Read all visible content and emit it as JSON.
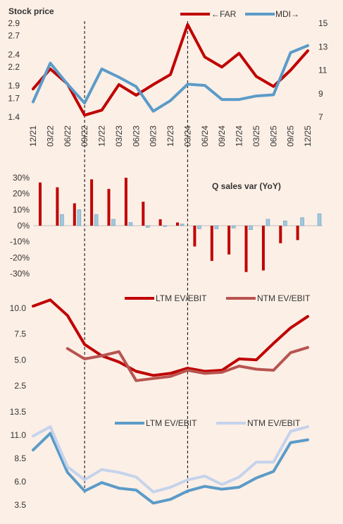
{
  "colors": {
    "background": "#fcefe6",
    "far_red": "#c00000",
    "mdi_blue": "#5b9bc8",
    "ntm_far": "#b85450",
    "ntm_mdi": "#c5d3ec"
  },
  "chart_data": [
    {
      "id": "stock",
      "type": "line",
      "title": "Stock price",
      "x_labels": [
        "12/21",
        "03/22",
        "06/22",
        "09/22",
        "12/22",
        "03/23",
        "06/23",
        "09/23",
        "12/23",
        "03/24",
        "06/24",
        "09/24",
        "12/24",
        "03/25",
        "06/25",
        "09/25",
        "12/25"
      ],
      "y_left": {
        "ylim": [
          1.4,
          2.9
        ],
        "ticks": [
          "1.4",
          "1.7",
          "1.9",
          "2.2",
          "2.4",
          "2.7",
          "2.9"
        ]
      },
      "y_right": {
        "ylim": [
          7,
          15
        ],
        "ticks": [
          "7",
          "9",
          "11",
          "13",
          "15"
        ]
      },
      "series": [
        {
          "name": "←FAR",
          "axis": "left",
          "color": "#c00000",
          "values": [
            1.85,
            2.17,
            1.93,
            1.43,
            1.51,
            1.92,
            1.75,
            1.92,
            2.08,
            2.88,
            2.36,
            2.2,
            2.42,
            2.05,
            1.89,
            2.15,
            2.46
          ]
        },
        {
          "name": "MDI→",
          "axis": "right",
          "color": "#5b9bc8",
          "values": [
            8.3,
            11.6,
            9.8,
            8.2,
            11.1,
            10.4,
            9.6,
            7.5,
            8.4,
            9.8,
            9.7,
            8.5,
            8.5,
            8.8,
            8.9,
            12.5,
            13.1
          ]
        }
      ],
      "vertical_markers_at": [
        "09/22",
        "03/24"
      ]
    },
    {
      "id": "sales",
      "type": "bar",
      "title": "Q sales var (YoY)",
      "ylim": [
        -30,
        30
      ],
      "ticks": [
        "30%",
        "20%",
        "10%",
        "0%",
        "-10%",
        "-20%",
        "-30%"
      ],
      "series": [
        {
          "name": "FAR",
          "color": "#c00000",
          "values": [
            27,
            24,
            14,
            29,
            23,
            30,
            15,
            4,
            2,
            -13,
            -22,
            -18,
            -29,
            -28,
            -11,
            -9,
            null
          ]
        },
        {
          "name": "MDI",
          "color": "#9fc8dd",
          "values": [
            null,
            7,
            10,
            7,
            4,
            2,
            -1,
            -0.5,
            1,
            -2,
            -2,
            -1.5,
            -2.5,
            4,
            3,
            5,
            7.5
          ]
        }
      ]
    },
    {
      "id": "ev_far",
      "type": "line",
      "ylim": [
        2.5,
        10.0
      ],
      "ticks": [
        "10.0",
        "7.5",
        "5.0",
        "2.5"
      ],
      "series": [
        {
          "name": "LTM EV/EBIT",
          "color": "#c00000",
          "values": [
            10.2,
            10.8,
            9.3,
            6.5,
            5.4,
            4.8,
            3.9,
            3.5,
            3.7,
            4.2,
            3.9,
            4.0,
            5.1,
            5.0,
            6.6,
            8.1,
            9.2
          ]
        },
        {
          "name": "NTM EV/EBIT",
          "color": "#b85450",
          "values": [
            null,
            null,
            6.1,
            5.1,
            5.4,
            5.8,
            3.0,
            3.2,
            3.4,
            4.0,
            3.7,
            3.8,
            4.4,
            4.1,
            4.0,
            5.7,
            6.2
          ]
        }
      ]
    },
    {
      "id": "ev_mdi",
      "type": "line",
      "ylim": [
        3.5,
        13.5
      ],
      "ticks": [
        "13.5",
        "11.0",
        "8.5",
        "6.0",
        "3.5"
      ],
      "series": [
        {
          "name": "LTM EV/EBIT",
          "color": "#5b9bc8",
          "values": [
            9.4,
            11.2,
            7.0,
            5.0,
            5.9,
            5.3,
            5.1,
            3.7,
            4.1,
            5.0,
            5.5,
            5.2,
            5.4,
            6.4,
            7.1,
            10.2,
            10.5
          ]
        },
        {
          "name": "NTM EV/EBIT",
          "color": "#c5d3ec",
          "values": [
            10.9,
            11.9,
            7.6,
            6.2,
            7.3,
            7.0,
            6.5,
            4.9,
            5.4,
            6.2,
            6.6,
            5.7,
            6.5,
            8.1,
            8.1,
            11.4,
            11.9
          ]
        }
      ]
    }
  ]
}
